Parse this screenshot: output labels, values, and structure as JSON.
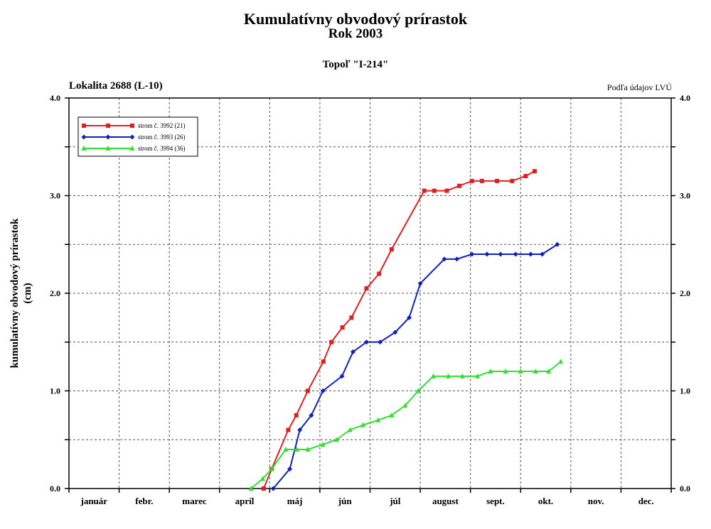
{
  "header": {
    "title": "Kumulatívny obvodový prírastok",
    "year": "Rok 2003",
    "subtitle": "Topoľ \"I-214\"",
    "location": "Lokalita 2688 (L-10)",
    "source": "Podľa údajov LVÚ"
  },
  "chart_data": {
    "type": "line",
    "title": "Kumulatívny obvodový prírastok",
    "ylabel_line1": "kumulatívny obvodový prírastok",
    "ylabel_line2": "(cm)",
    "ylim": [
      0,
      4
    ],
    "y_ticks": [
      "0.0",
      "1.0",
      "2.0",
      "3.0",
      "4.0"
    ],
    "months": [
      "január",
      "febr.",
      "marec",
      "apríl",
      "máj",
      "jún",
      "júl",
      "august",
      "sept.",
      "okt.",
      "nov.",
      "dec."
    ],
    "legend_position": "top-left",
    "grid": true,
    "series": [
      {
        "name": "strom č. 3992 (21)",
        "color": "#e02020",
        "marker": "square",
        "points": [
          [
            3.88,
            0
          ],
          [
            4.04,
            0.2
          ],
          [
            4.37,
            0.6
          ],
          [
            4.53,
            0.75
          ],
          [
            4.76,
            1.0
          ],
          [
            5.07,
            1.3
          ],
          [
            5.23,
            1.5
          ],
          [
            5.45,
            1.65
          ],
          [
            5.63,
            1.75
          ],
          [
            5.93,
            2.05
          ],
          [
            6.18,
            2.2
          ],
          [
            6.43,
            2.45
          ],
          [
            7.08,
            3.05
          ],
          [
            7.28,
            3.05
          ],
          [
            7.53,
            3.05
          ],
          [
            7.78,
            3.1
          ],
          [
            8.03,
            3.15
          ],
          [
            8.23,
            3.15
          ],
          [
            8.53,
            3.15
          ],
          [
            8.83,
            3.15
          ],
          [
            9.1,
            3.2
          ],
          [
            9.28,
            3.25
          ]
        ]
      },
      {
        "name": "strom č. 3993 (26)",
        "color": "#1020c0",
        "marker": "diamond",
        "points": [
          [
            4.07,
            0
          ],
          [
            4.4,
            0.2
          ],
          [
            4.6,
            0.6
          ],
          [
            4.83,
            0.75
          ],
          [
            5.06,
            1.0
          ],
          [
            5.44,
            1.15
          ],
          [
            5.66,
            1.4
          ],
          [
            5.93,
            1.5
          ],
          [
            6.2,
            1.5
          ],
          [
            6.5,
            1.6
          ],
          [
            6.78,
            1.75
          ],
          [
            7.0,
            2.1
          ],
          [
            7.48,
            2.35
          ],
          [
            7.73,
            2.35
          ],
          [
            8.03,
            2.4
          ],
          [
            8.33,
            2.4
          ],
          [
            8.6,
            2.4
          ],
          [
            8.9,
            2.4
          ],
          [
            9.2,
            2.4
          ],
          [
            9.43,
            2.4
          ],
          [
            9.73,
            2.5
          ]
        ]
      },
      {
        "name": "strom č. 3994 (36)",
        "color": "#30e030",
        "marker": "triangle",
        "points": [
          [
            3.63,
            0
          ],
          [
            3.86,
            0.1
          ],
          [
            4.04,
            0.2
          ],
          [
            4.32,
            0.4
          ],
          [
            4.54,
            0.4
          ],
          [
            4.76,
            0.4
          ],
          [
            5.06,
            0.45
          ],
          [
            5.33,
            0.5
          ],
          [
            5.6,
            0.6
          ],
          [
            5.86,
            0.65
          ],
          [
            6.16,
            0.7
          ],
          [
            6.43,
            0.75
          ],
          [
            6.7,
            0.85
          ],
          [
            6.96,
            1.0
          ],
          [
            7.26,
            1.15
          ],
          [
            7.56,
            1.15
          ],
          [
            7.84,
            1.15
          ],
          [
            8.14,
            1.15
          ],
          [
            8.4,
            1.2
          ],
          [
            8.7,
            1.2
          ],
          [
            9.0,
            1.2
          ],
          [
            9.3,
            1.2
          ],
          [
            9.56,
            1.2
          ],
          [
            9.8,
            1.3
          ]
        ]
      }
    ]
  }
}
